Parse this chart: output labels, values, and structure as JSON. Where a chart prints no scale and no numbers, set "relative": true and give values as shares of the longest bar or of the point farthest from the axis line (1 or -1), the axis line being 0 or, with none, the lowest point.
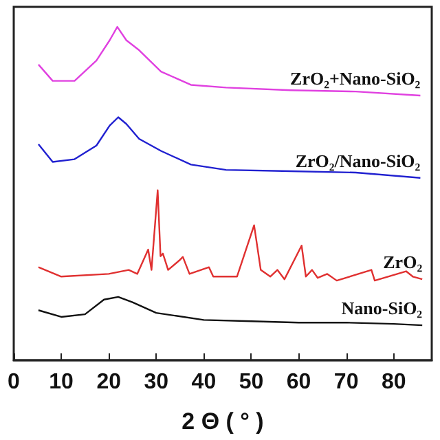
{
  "chart_data": {
    "type": "line",
    "relative": true,
    "xlabel": "2 Θ ( ° )",
    "xlim": [
      0,
      88
    ],
    "xticks": [
      0,
      10,
      20,
      30,
      40,
      50,
      60,
      70,
      80
    ],
    "grid": false,
    "legend": false,
    "marker": "none",
    "line_style": "solid",
    "series": [
      {
        "name": "ZrO₂+Nano-SiO₂",
        "color": "#e040e0",
        "x": [
          5.2,
          8.2,
          12.8,
          17.4,
          20.2,
          21.8,
          23.7,
          26.4,
          31,
          37.3,
          44.7,
          58.3,
          72,
          85.6
        ],
        "values": [
          0.887,
          0.838,
          0.838,
          0.899,
          0.96,
          1.0,
          0.96,
          0.93,
          0.866,
          0.826,
          0.818,
          0.81,
          0.806,
          0.794
        ]
      },
      {
        "name": "ZrO₂/Nano-SiO₂",
        "color": "#2020d0",
        "x": [
          5.2,
          8.2,
          12.8,
          17.4,
          20.2,
          22,
          23.7,
          26.4,
          31,
          37.3,
          44.7,
          58.3,
          72,
          85.6
        ],
        "values": [
          0.648,
          0.595,
          0.603,
          0.644,
          0.704,
          0.729,
          0.709,
          0.664,
          0.628,
          0.587,
          0.571,
          0.567,
          0.563,
          0.547
        ]
      },
      {
        "name": "ZrO₂",
        "color": "#e03030",
        "x": [
          5.2,
          10,
          20,
          24.2,
          26,
          28.3,
          29,
          30.3,
          30.9,
          31.4,
          32.5,
          34.9,
          35.6,
          37,
          41.1,
          42,
          47,
          50.6,
          52,
          54,
          55.5,
          57,
          60.6,
          61.5,
          62.8,
          64,
          66,
          68,
          75.3,
          76,
          82.6,
          84,
          86
        ],
        "values": [
          0.279,
          0.251,
          0.259,
          0.271,
          0.259,
          0.332,
          0.271,
          0.51,
          0.312,
          0.32,
          0.271,
          0.3,
          0.31,
          0.259,
          0.279,
          0.251,
          0.251,
          0.405,
          0.271,
          0.251,
          0.271,
          0.243,
          0.344,
          0.251,
          0.271,
          0.247,
          0.259,
          0.239,
          0.271,
          0.239,
          0.267,
          0.251,
          0.243
        ]
      },
      {
        "name": "Nano-SiO₂",
        "color": "#111111",
        "x": [
          5.2,
          10,
          15,
          19,
          22,
          25,
          30,
          40,
          50,
          60,
          70,
          80,
          86
        ],
        "values": [
          0.15,
          0.13,
          0.138,
          0.182,
          0.19,
          0.174,
          0.142,
          0.121,
          0.117,
          0.113,
          0.113,
          0.109,
          0.105
        ]
      }
    ]
  }
}
